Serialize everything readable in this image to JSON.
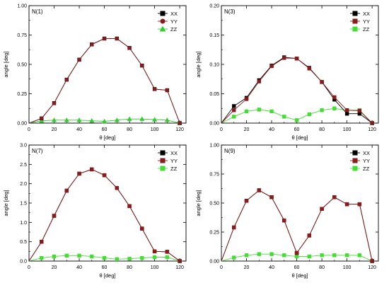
{
  "chart_data": [
    {
      "type": "line",
      "title": "N(1)",
      "xlabel": "θ [deg]",
      "ylabel": "angle [deg]",
      "xlim": [
        0,
        125
      ],
      "ylim": [
        0,
        1.0
      ],
      "x_ticks": [
        0,
        20,
        40,
        60,
        80,
        100,
        120
      ],
      "y_ticks": [
        0.0,
        0.25,
        0.5,
        0.75,
        1.0
      ],
      "y_tick_labels": [
        "0.00",
        "0.25",
        "0.50",
        "0.75",
        "1.00"
      ],
      "legend_position": "top-right",
      "x": [
        0,
        10,
        20,
        30,
        40,
        50,
        60,
        70,
        80,
        90,
        100,
        110,
        120
      ],
      "series": [
        {
          "name": "XX",
          "color": "#000000",
          "marker": "square",
          "values": [
            0,
            0.04,
            0.17,
            0.37,
            0.54,
            0.67,
            0.72,
            0.72,
            0.64,
            0.49,
            0.29,
            0.28,
            0.0
          ]
        },
        {
          "name": "YY",
          "color": "#8b1a1a",
          "marker": "circle",
          "values": [
            0,
            0.04,
            0.17,
            0.37,
            0.54,
            0.67,
            0.72,
            0.72,
            0.64,
            0.49,
            0.29,
            0.28,
            0.0
          ]
        },
        {
          "name": "ZZ",
          "color": "#33cc33",
          "marker": "triangle",
          "values": [
            0,
            0.02,
            0.025,
            0.025,
            0.025,
            0.02,
            0.015,
            0.025,
            0.035,
            0.035,
            0.03,
            0.025,
            0.0
          ]
        }
      ]
    },
    {
      "type": "line",
      "title": "N(3)",
      "xlabel": "θ [deg]",
      "ylabel": "angle [deg]",
      "xlim": [
        0,
        125
      ],
      "ylim": [
        0,
        0.2
      ],
      "x_ticks": [
        0,
        20,
        40,
        60,
        80,
        100,
        120
      ],
      "y_ticks": [
        0.0,
        0.05,
        0.1,
        0.15,
        0.2
      ],
      "y_tick_labels": [
        "0.00",
        "0.05",
        "0.10",
        "0.15",
        "0.20"
      ],
      "legend_position": "top-right",
      "x": [
        0,
        10,
        20,
        30,
        40,
        50,
        60,
        70,
        80,
        90,
        100,
        110,
        120
      ],
      "series": [
        {
          "name": "XX",
          "color": "#000000",
          "marker": "square",
          "values": [
            0,
            0.029,
            0.043,
            0.073,
            0.098,
            0.112,
            0.11,
            0.094,
            0.07,
            0.04,
            0.016,
            0.016,
            0.0
          ]
        },
        {
          "name": "YY",
          "color": "#8b1a1a",
          "marker": "square",
          "values": [
            0,
            0.022,
            0.041,
            0.071,
            0.097,
            0.111,
            0.11,
            0.093,
            0.07,
            0.044,
            0.022,
            0.021,
            0.0
          ]
        },
        {
          "name": "ZZ",
          "color": "#44dd33",
          "marker": "square",
          "values": [
            0,
            0.011,
            0.02,
            0.023,
            0.02,
            0.011,
            0.005,
            0.015,
            0.022,
            0.025,
            0.022,
            0.022,
            0.0
          ]
        }
      ]
    },
    {
      "type": "line",
      "title": "N(7)",
      "xlabel": "θ [deg]",
      "ylabel": "angle [deg]",
      "xlim": [
        0,
        125
      ],
      "ylim": [
        0,
        3.0
      ],
      "x_ticks": [
        0,
        20,
        40,
        60,
        80,
        100,
        120
      ],
      "y_ticks": [
        0.0,
        0.5,
        1.0,
        1.5,
        2.0,
        2.5,
        3.0
      ],
      "y_tick_labels": [
        "0.0",
        "0.5",
        "1.0",
        "1.5",
        "2.0",
        "2.5",
        "3.0"
      ],
      "legend_position": "top-right",
      "x": [
        0,
        10,
        20,
        30,
        40,
        50,
        60,
        70,
        80,
        90,
        100,
        110,
        120
      ],
      "series": [
        {
          "name": "XX",
          "color": "#000000",
          "marker": "square",
          "values": [
            0,
            0.5,
            1.17,
            1.82,
            2.26,
            2.37,
            2.22,
            1.89,
            1.42,
            0.84,
            0.25,
            0.24,
            0.0
          ]
        },
        {
          "name": "YY",
          "color": "#8b1a1a",
          "marker": "square",
          "values": [
            0,
            0.5,
            1.17,
            1.82,
            2.26,
            2.37,
            2.22,
            1.89,
            1.42,
            0.84,
            0.25,
            0.24,
            0.0
          ]
        },
        {
          "name": "ZZ",
          "color": "#44dd33",
          "marker": "square",
          "values": [
            0,
            0.08,
            0.12,
            0.14,
            0.14,
            0.12,
            0.08,
            0.05,
            0.06,
            0.08,
            0.1,
            0.1,
            0.0
          ]
        }
      ]
    },
    {
      "type": "line",
      "title": "N(9)",
      "xlabel": "θ [deg]",
      "ylabel": "angle [deg]",
      "xlim": [
        0,
        125
      ],
      "ylim": [
        0,
        1.0
      ],
      "x_ticks": [
        0,
        20,
        40,
        60,
        80,
        100,
        120
      ],
      "y_ticks": [
        0.0,
        0.25,
        0.5,
        0.75,
        1.0
      ],
      "y_tick_labels": [
        "0.00",
        "0.25",
        "0.50",
        "0.75",
        "1.00"
      ],
      "legend_position": "top-right",
      "x": [
        0,
        10,
        20,
        30,
        40,
        50,
        60,
        70,
        80,
        90,
        100,
        110,
        120
      ],
      "series": [
        {
          "name": "XX",
          "color": "#000000",
          "marker": "square",
          "values": [
            0,
            0.29,
            0.52,
            0.61,
            0.55,
            0.35,
            0.07,
            0.22,
            0.45,
            0.55,
            0.49,
            0.49,
            0.0
          ]
        },
        {
          "name": "YY",
          "color": "#8b1a1a",
          "marker": "square",
          "values": [
            0,
            0.29,
            0.52,
            0.61,
            0.55,
            0.35,
            0.07,
            0.22,
            0.45,
            0.55,
            0.49,
            0.49,
            0.0
          ]
        },
        {
          "name": "ZZ",
          "color": "#44dd33",
          "marker": "square",
          "values": [
            0,
            0.03,
            0.05,
            0.06,
            0.06,
            0.05,
            0.04,
            0.04,
            0.05,
            0.05,
            0.05,
            0.05,
            0.0
          ]
        }
      ]
    }
  ]
}
